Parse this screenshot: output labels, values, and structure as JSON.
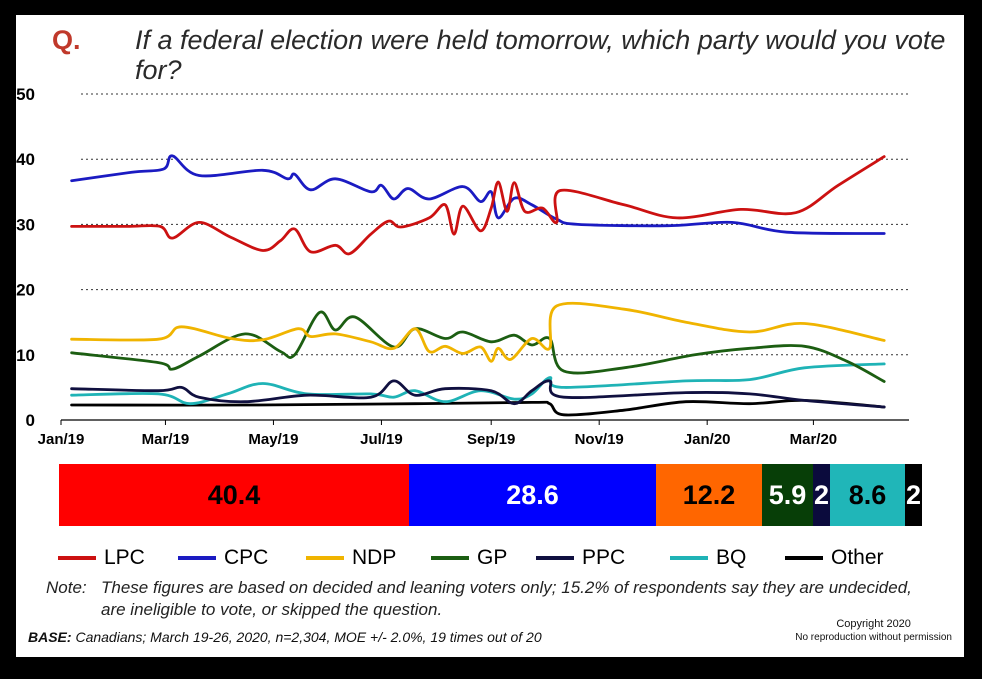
{
  "question": {
    "marker": "Q.",
    "text": "If a federal election were held tomorrow, which party would you vote for?"
  },
  "chart_data": {
    "type": "line",
    "ylim": [
      0,
      50
    ],
    "yticks": [
      0,
      10,
      20,
      30,
      40,
      50
    ],
    "grid": "horizontal dotted",
    "x_ticks": [
      {
        "label": "Jan/19",
        "date": "2019-01-01"
      },
      {
        "label": "Mar/19",
        "date": "2019-03-01"
      },
      {
        "label": "May/19",
        "date": "2019-05-01"
      },
      {
        "label": "Jul/19",
        "date": "2019-07-01"
      },
      {
        "label": "Sep/19",
        "date": "2019-09-01"
      },
      {
        "label": "Nov/19",
        "date": "2019-11-01"
      },
      {
        "label": "Jan/20",
        "date": "2020-01-01"
      },
      {
        "label": "Mar/20",
        "date": "2020-03-01"
      }
    ],
    "xlim": [
      "2019-01-01",
      "2020-04-24"
    ],
    "series": [
      {
        "name": "LPC",
        "color": "#cc1111",
        "points": [
          [
            "2019-01-07",
            29.7
          ],
          [
            "2019-02-07",
            29.7
          ],
          [
            "2019-02-26",
            29.7
          ],
          [
            "2019-03-05",
            27.9
          ],
          [
            "2019-03-20",
            30.3
          ],
          [
            "2019-04-07",
            28.0
          ],
          [
            "2019-04-25",
            26.0
          ],
          [
            "2019-05-05",
            27.5
          ],
          [
            "2019-05-13",
            29.3
          ],
          [
            "2019-05-22",
            25.8
          ],
          [
            "2019-06-05",
            26.8
          ],
          [
            "2019-06-13",
            25.5
          ],
          [
            "2019-06-25",
            28.5
          ],
          [
            "2019-07-05",
            30.5
          ],
          [
            "2019-07-12",
            29.6
          ],
          [
            "2019-07-28",
            31.0
          ],
          [
            "2019-08-06",
            33.0
          ],
          [
            "2019-08-11",
            28.5
          ],
          [
            "2019-08-16",
            32.8
          ],
          [
            "2019-08-26",
            29.0
          ],
          [
            "2019-09-01",
            32.5
          ],
          [
            "2019-09-05",
            36.5
          ],
          [
            "2019-09-10",
            32.0
          ],
          [
            "2019-09-14",
            36.4
          ],
          [
            "2019-09-20",
            32.0
          ],
          [
            "2019-09-30",
            32.5
          ],
          [
            "2019-10-08",
            30.3
          ],
          [
            "2019-10-10",
            35.2
          ],
          [
            "2019-11-15",
            33.0
          ],
          [
            "2019-12-15",
            31.0
          ],
          [
            "2020-01-20",
            32.3
          ],
          [
            "2020-02-20",
            31.8
          ],
          [
            "2020-03-15",
            36.0
          ],
          [
            "2020-04-10",
            40.4
          ]
        ]
      },
      {
        "name": "CPC",
        "color": "#1b1bc2",
        "points": [
          [
            "2019-01-07",
            36.7
          ],
          [
            "2019-02-10",
            38.0
          ],
          [
            "2019-02-28",
            38.5
          ],
          [
            "2019-03-05",
            40.5
          ],
          [
            "2019-03-20",
            37.5
          ],
          [
            "2019-04-25",
            38.3
          ],
          [
            "2019-05-09",
            37.0
          ],
          [
            "2019-05-13",
            37.7
          ],
          [
            "2019-05-22",
            35.3
          ],
          [
            "2019-06-05",
            37.0
          ],
          [
            "2019-06-25",
            35.0
          ],
          [
            "2019-07-01",
            36.0
          ],
          [
            "2019-07-08",
            33.9
          ],
          [
            "2019-07-16",
            35.5
          ],
          [
            "2019-07-28",
            33.9
          ],
          [
            "2019-08-16",
            35.8
          ],
          [
            "2019-08-26",
            33.5
          ],
          [
            "2019-09-01",
            35.0
          ],
          [
            "2019-09-05",
            31.0
          ],
          [
            "2019-09-14",
            34.0
          ],
          [
            "2019-09-24",
            33.0
          ],
          [
            "2019-10-08",
            30.8
          ],
          [
            "2019-10-20",
            30.0
          ],
          [
            "2019-12-10",
            29.8
          ],
          [
            "2020-01-15",
            30.3
          ],
          [
            "2020-02-15",
            28.8
          ],
          [
            "2020-04-10",
            28.6
          ]
        ]
      },
      {
        "name": "NDP",
        "color": "#f0b400",
        "points": [
          [
            "2019-01-07",
            12.4
          ],
          [
            "2019-02-25",
            12.4
          ],
          [
            "2019-03-10",
            14.3
          ],
          [
            "2019-04-07",
            12.5
          ],
          [
            "2019-04-25",
            12.3
          ],
          [
            "2019-05-15",
            14.0
          ],
          [
            "2019-05-22",
            12.8
          ],
          [
            "2019-06-05",
            13.2
          ],
          [
            "2019-06-25",
            12.0
          ],
          [
            "2019-07-08",
            11.0
          ],
          [
            "2019-07-20",
            14.0
          ],
          [
            "2019-07-28",
            10.5
          ],
          [
            "2019-08-06",
            11.3
          ],
          [
            "2019-08-16",
            10.2
          ],
          [
            "2019-08-26",
            11.2
          ],
          [
            "2019-09-01",
            9.0
          ],
          [
            "2019-09-05",
            11.0
          ],
          [
            "2019-09-12",
            9.3
          ],
          [
            "2019-09-24",
            12.5
          ],
          [
            "2019-10-04",
            11.0
          ],
          [
            "2019-10-08",
            17.5
          ],
          [
            "2019-11-15",
            17.0
          ],
          [
            "2019-12-20",
            15.0
          ],
          [
            "2020-01-25",
            13.5
          ],
          [
            "2020-02-25",
            14.8
          ],
          [
            "2020-04-10",
            12.2
          ]
        ]
      },
      {
        "name": "GP",
        "color": "#1c5e12",
        "points": [
          [
            "2019-01-07",
            10.3
          ],
          [
            "2019-02-25",
            8.8
          ],
          [
            "2019-03-05",
            7.8
          ],
          [
            "2019-03-20",
            9.8
          ],
          [
            "2019-04-15",
            13.2
          ],
          [
            "2019-05-05",
            10.5
          ],
          [
            "2019-05-13",
            10.0
          ],
          [
            "2019-05-27",
            16.5
          ],
          [
            "2019-06-05",
            13.8
          ],
          [
            "2019-06-16",
            15.8
          ],
          [
            "2019-07-08",
            11.2
          ],
          [
            "2019-07-20",
            14.0
          ],
          [
            "2019-08-06",
            12.5
          ],
          [
            "2019-08-16",
            13.5
          ],
          [
            "2019-09-01",
            12.0
          ],
          [
            "2019-09-14",
            13.0
          ],
          [
            "2019-09-24",
            11.5
          ],
          [
            "2019-10-04",
            12.5
          ],
          [
            "2019-10-12",
            7.5
          ],
          [
            "2019-11-15",
            8.0
          ],
          [
            "2019-12-25",
            10.0
          ],
          [
            "2020-01-25",
            11.0
          ],
          [
            "2020-02-25",
            11.3
          ],
          [
            "2020-03-20",
            9.0
          ],
          [
            "2020-04-10",
            5.9
          ]
        ]
      },
      {
        "name": "PPC",
        "color": "#101040",
        "points": [
          [
            "2019-01-07",
            4.8
          ],
          [
            "2019-02-25",
            4.5
          ],
          [
            "2019-03-10",
            5.0
          ],
          [
            "2019-03-20",
            3.5
          ],
          [
            "2019-04-15",
            2.8
          ],
          [
            "2019-05-20",
            3.8
          ],
          [
            "2019-06-25",
            3.5
          ],
          [
            "2019-07-08",
            6.0
          ],
          [
            "2019-07-20",
            3.8
          ],
          [
            "2019-08-06",
            4.8
          ],
          [
            "2019-09-01",
            4.5
          ],
          [
            "2019-09-14",
            2.5
          ],
          [
            "2019-09-24",
            4.5
          ],
          [
            "2019-10-04",
            6.0
          ],
          [
            "2019-10-12",
            3.5
          ],
          [
            "2019-12-20",
            4.2
          ],
          [
            "2020-01-25",
            4.0
          ],
          [
            "2020-02-25",
            3.0
          ],
          [
            "2020-04-10",
            2.0
          ]
        ]
      },
      {
        "name": "BQ",
        "color": "#1fb3b6",
        "points": [
          [
            "2019-01-07",
            3.8
          ],
          [
            "2019-02-25",
            4.0
          ],
          [
            "2019-03-15",
            2.5
          ],
          [
            "2019-04-05",
            4.0
          ],
          [
            "2019-04-25",
            5.6
          ],
          [
            "2019-05-20",
            4.0
          ],
          [
            "2019-06-25",
            4.0
          ],
          [
            "2019-07-08",
            3.5
          ],
          [
            "2019-07-20",
            4.5
          ],
          [
            "2019-08-06",
            2.8
          ],
          [
            "2019-08-26",
            4.5
          ],
          [
            "2019-09-14",
            3.2
          ],
          [
            "2019-09-24",
            4.0
          ],
          [
            "2019-10-04",
            6.5
          ],
          [
            "2019-10-12",
            5.0
          ],
          [
            "2019-12-20",
            6.0
          ],
          [
            "2020-01-25",
            6.2
          ],
          [
            "2020-02-25",
            8.0
          ],
          [
            "2020-04-10",
            8.6
          ]
        ]
      },
      {
        "name": "Other",
        "color": "#000000",
        "points": [
          [
            "2019-01-07",
            2.3
          ],
          [
            "2019-04-20",
            2.3
          ],
          [
            "2019-07-20",
            2.5
          ],
          [
            "2019-09-24",
            2.7
          ],
          [
            "2019-10-04",
            2.5
          ],
          [
            "2019-10-12",
            0.8
          ],
          [
            "2019-11-15",
            1.5
          ],
          [
            "2019-12-20",
            2.8
          ],
          [
            "2020-01-25",
            2.5
          ],
          [
            "2020-02-25",
            3.0
          ],
          [
            "2020-04-10",
            2.0
          ]
        ]
      }
    ]
  },
  "current_bar": [
    {
      "party": "LPC",
      "label": "40.4",
      "value": 40.4,
      "color": "#ff0000",
      "text_color": "#000000"
    },
    {
      "party": "CPC",
      "label": "28.6",
      "value": 28.6,
      "color": "#0000ff",
      "text_color": "#ffffff"
    },
    {
      "party": "NDP",
      "label": "12.2",
      "value": 12.2,
      "color": "#ff6600",
      "text_color": "#000000"
    },
    {
      "party": "GP",
      "label": "5.9",
      "value": 5.9,
      "color": "#073e07",
      "text_color": "#ffffff"
    },
    {
      "party": "PPC",
      "label": "2",
      "value": 2,
      "color": "#0b0b3d",
      "text_color": "#ffffff"
    },
    {
      "party": "BQ",
      "label": "8.6",
      "value": 8.6,
      "color": "#20b6b8",
      "text_color": "#000000"
    },
    {
      "party": "Other",
      "label": "2",
      "value": 2,
      "color": "#000000",
      "text_color": "#ffffff"
    }
  ],
  "legend": [
    {
      "label": "LPC",
      "color": "#cc1111"
    },
    {
      "label": "CPC",
      "color": "#1b1bc2"
    },
    {
      "label": "NDP",
      "color": "#f0b400"
    },
    {
      "label": "GP",
      "color": "#1c5e12"
    },
    {
      "label": "PPC",
      "color": "#101040"
    },
    {
      "label": "BQ",
      "color": "#1fb3b6"
    },
    {
      "label": "Other",
      "color": "#000000"
    }
  ],
  "note": {
    "prefix": "Note:",
    "text": "These figures are based on decided and leaning voters only; 15.2% of respondents say they are undecided, are ineligible to vote, or skipped the question."
  },
  "base": {
    "label": "BASE:",
    "text": " Canadians; March 19-26, 2020, n=2,304, MOE +/- 2.0%, 19 times out of 20"
  },
  "copyright": {
    "title": "Copyright 2020",
    "subtitle": "No reproduction without permission"
  }
}
